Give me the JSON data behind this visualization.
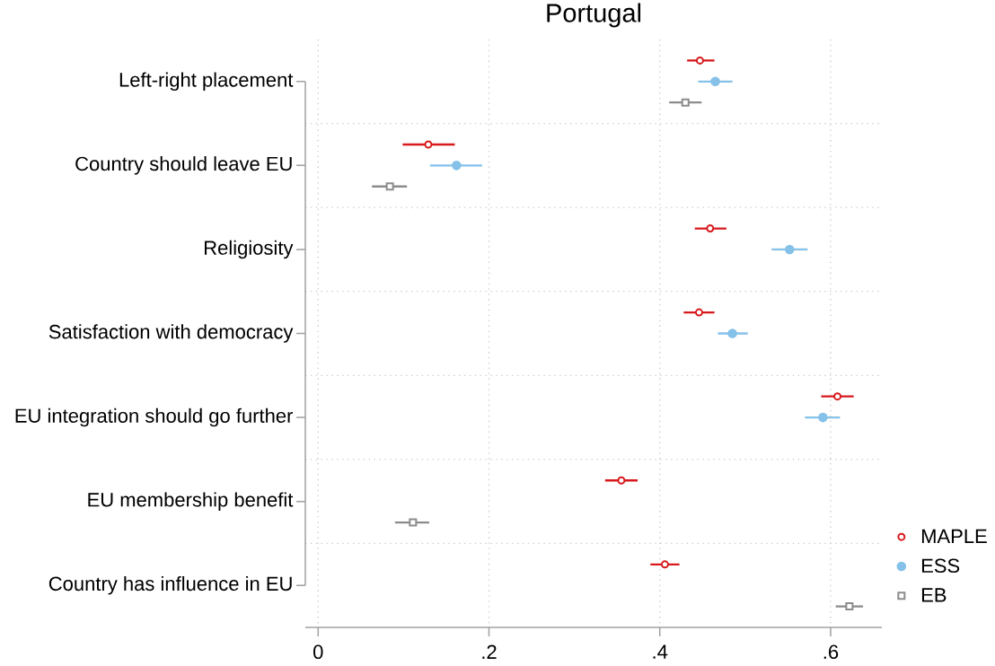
{
  "chart_data": {
    "type": "scatter",
    "orientation": "horizontal",
    "title": "Portugal",
    "categories": [
      "Left-right placement",
      "Country should leave EU",
      "Religiosity",
      "Satisfaction with democracy",
      "EU integration should go further",
      "EU membership benefit",
      "Country has influence in EU"
    ],
    "series": [
      {
        "name": "MAPLE",
        "color": "#d7191c",
        "marker": "circle",
        "values": [
          0.447,
          0.129,
          0.459,
          0.446,
          0.608,
          0.355,
          0.406
        ],
        "errors": [
          [
            0.432,
            0.464
          ],
          [
            0.099,
            0.16
          ],
          [
            0.441,
            0.478
          ],
          [
            0.428,
            0.464
          ],
          [
            0.589,
            0.627
          ],
          [
            0.336,
            0.374
          ],
          [
            0.389,
            0.423
          ]
        ]
      },
      {
        "name": "ESS",
        "color": "#85c1e9",
        "marker": "circle",
        "values": [
          0.465,
          0.162,
          0.552,
          0.485,
          0.591,
          null,
          null
        ],
        "errors": [
          [
            0.445,
            0.485
          ],
          [
            0.131,
            0.192
          ],
          [
            0.531,
            0.573
          ],
          [
            0.468,
            0.503
          ],
          [
            0.57,
            0.611
          ],
          null,
          null
        ]
      },
      {
        "name": "EB",
        "color": "#8c8c8c",
        "marker": "square",
        "values": [
          0.43,
          0.084,
          null,
          null,
          null,
          0.111,
          0.622
        ],
        "errors": [
          [
            0.411,
            0.449
          ],
          [
            0.063,
            0.104
          ],
          null,
          null,
          null,
          [
            0.09,
            0.13
          ],
          [
            0.606,
            0.638
          ]
        ]
      }
    ],
    "xlim": [
      -0.015,
      0.66
    ],
    "xticks": [
      0,
      {
        "value": 0.2,
        "label": ".2"
      },
      {
        "value": 0.4,
        "label": ".4"
      },
      {
        "value": 0.6,
        "label": ".6"
      }
    ],
    "grid": true,
    "legend": "bottom right"
  }
}
